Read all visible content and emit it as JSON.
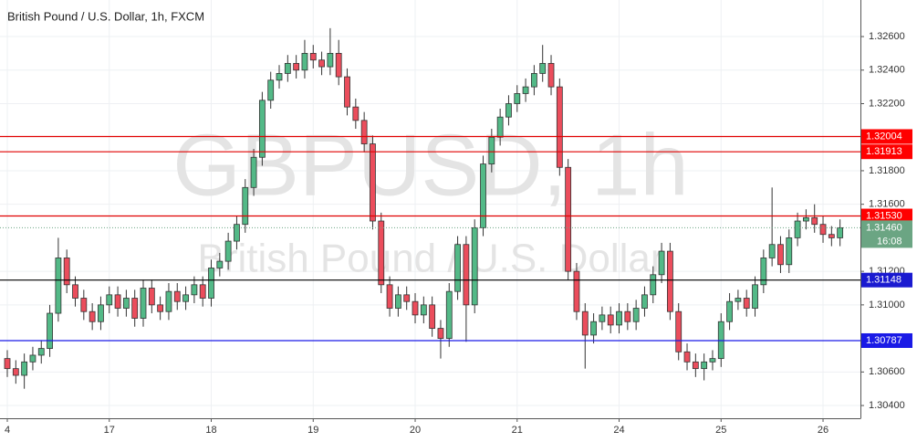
{
  "chart_data": {
    "type": "candlestick",
    "title": "British Pound / U.S. Dollar, 1h, FXCM",
    "watermark_symbol": "GBPUSD, 1h",
    "watermark_description": "British Pound / U.S. Dollar",
    "up_color": "#53b987",
    "down_color": "#eb4d5c",
    "x": [
      0,
      2,
      4,
      6,
      8,
      10,
      12,
      14,
      16,
      18,
      20,
      22,
      24,
      26,
      28,
      30,
      32,
      34,
      36,
      38,
      40,
      42,
      44,
      46,
      48,
      50,
      52,
      54,
      56,
      58,
      60,
      62,
      64,
      66,
      68,
      70,
      72,
      74,
      76,
      78,
      80,
      82,
      84,
      86,
      88,
      90,
      92,
      94,
      96,
      98,
      100,
      102,
      104,
      106,
      108,
      110,
      112,
      114,
      116,
      118,
      120,
      122,
      124,
      126,
      128,
      130,
      132,
      134,
      136,
      138,
      140,
      142,
      144,
      146,
      148,
      150,
      152,
      154,
      156,
      158,
      160,
      162,
      164,
      166,
      168,
      170,
      172,
      174,
      176,
      178,
      180,
      182,
      184,
      186,
      188,
      190,
      192,
      194,
      196
    ],
    "open": [
      1.3068,
      1.3062,
      1.3058,
      1.3066,
      1.307,
      1.3074,
      1.3095,
      1.3128,
      1.3112,
      1.3104,
      1.3096,
      1.309,
      1.31,
      1.3106,
      1.3098,
      1.3104,
      1.3092,
      1.311,
      1.31,
      1.3096,
      1.3108,
      1.3102,
      1.3106,
      1.3112,
      1.3104,
      1.3122,
      1.3126,
      1.3138,
      1.3148,
      1.317,
      1.3188,
      1.3222,
      1.3234,
      1.3238,
      1.3244,
      1.324,
      1.325,
      1.3246,
      1.3242,
      1.325,
      1.3236,
      1.3218,
      1.321,
      1.3196,
      1.315,
      1.3112,
      1.3098,
      1.3106,
      1.3102,
      1.3094,
      1.31,
      1.3086,
      1.308,
      1.3108,
      1.3136,
      1.31,
      1.3146,
      1.3184,
      1.32,
      1.3212,
      1.322,
      1.3226,
      1.323,
      1.3238,
      1.3244,
      1.323,
      1.3182,
      1.312,
      1.3096,
      1.3082,
      1.309,
      1.3094,
      1.3088,
      1.3096,
      1.309,
      1.3098,
      1.3106,
      1.3118,
      1.3132,
      1.3096,
      1.3072,
      1.3066,
      1.3062,
      1.3066,
      1.3068,
      1.309,
      1.3102,
      1.3104,
      1.3098,
      1.3112,
      1.3128,
      1.3136,
      1.3124,
      1.314,
      1.315,
      1.3152,
      1.3148,
      1.3142,
      1.314
    ],
    "high": [
      1.3073,
      1.3067,
      1.3071,
      1.3075,
      1.3079,
      1.31,
      1.314,
      1.3133,
      1.3117,
      1.3109,
      1.3101,
      1.3105,
      1.3111,
      1.3111,
      1.3109,
      1.3109,
      1.3115,
      1.3115,
      1.3105,
      1.3113,
      1.3113,
      1.3111,
      1.3117,
      1.3117,
      1.3127,
      1.3131,
      1.3143,
      1.3153,
      1.3175,
      1.3193,
      1.3227,
      1.3239,
      1.3243,
      1.3249,
      1.3249,
      1.3258,
      1.3255,
      1.3251,
      1.3265,
      1.3258,
      1.3241,
      1.3223,
      1.3215,
      1.3201,
      1.3155,
      1.3117,
      1.3111,
      1.3111,
      1.3107,
      1.3105,
      1.3105,
      1.3091,
      1.3113,
      1.3141,
      1.3141,
      1.3151,
      1.3189,
      1.3205,
      1.3217,
      1.3225,
      1.3231,
      1.3235,
      1.3243,
      1.3255,
      1.3249,
      1.3235,
      1.3187,
      1.3125,
      1.3101,
      1.3095,
      1.3099,
      1.3099,
      1.3101,
      1.3101,
      1.3103,
      1.3111,
      1.3123,
      1.3137,
      1.3137,
      1.3101,
      1.3077,
      1.3071,
      1.3071,
      1.3073,
      1.3095,
      1.3107,
      1.3109,
      1.3109,
      1.3117,
      1.3133,
      1.317,
      1.3141,
      1.3145,
      1.3155,
      1.3157,
      1.316,
      1.3153,
      1.3147,
      1.3151
    ],
    "low": [
      1.3057,
      1.3053,
      1.305,
      1.3061,
      1.3065,
      1.3069,
      1.309,
      1.3107,
      1.3099,
      1.3091,
      1.3085,
      1.3085,
      1.3095,
      1.3093,
      1.3093,
      1.3087,
      1.3087,
      1.3095,
      1.3091,
      1.3091,
      1.3097,
      1.3097,
      1.3101,
      1.3099,
      1.3099,
      1.3117,
      1.3121,
      1.3133,
      1.3143,
      1.3165,
      1.3183,
      1.3217,
      1.3229,
      1.3233,
      1.3235,
      1.3235,
      1.3241,
      1.3237,
      1.3237,
      1.3231,
      1.3213,
      1.3205,
      1.3191,
      1.3145,
      1.3107,
      1.3093,
      1.3093,
      1.3097,
      1.3089,
      1.3089,
      1.3081,
      1.3068,
      1.3075,
      1.3103,
      1.3078,
      1.3095,
      1.3141,
      1.3179,
      1.3195,
      1.3207,
      1.3215,
      1.3221,
      1.3225,
      1.3233,
      1.3225,
      1.3177,
      1.3115,
      1.3091,
      1.3062,
      1.3077,
      1.3085,
      1.3083,
      1.3083,
      1.3085,
      1.3085,
      1.3093,
      1.3101,
      1.3113,
      1.3091,
      1.3067,
      1.3061,
      1.3057,
      1.3055,
      1.3061,
      1.3063,
      1.3085,
      1.3097,
      1.3093,
      1.3093,
      1.3107,
      1.3123,
      1.3119,
      1.3119,
      1.3135,
      1.3145,
      1.3143,
      1.3137,
      1.3135,
      1.3135
    ],
    "close": [
      1.3062,
      1.3058,
      1.3066,
      1.307,
      1.3074,
      1.3095,
      1.3128,
      1.3112,
      1.3104,
      1.3096,
      1.309,
      1.31,
      1.3106,
      1.3098,
      1.3104,
      1.3092,
      1.311,
      1.31,
      1.3096,
      1.3108,
      1.3102,
      1.3106,
      1.3112,
      1.3104,
      1.3122,
      1.3126,
      1.3138,
      1.3148,
      1.317,
      1.3188,
      1.3222,
      1.3234,
      1.3238,
      1.3244,
      1.324,
      1.325,
      1.3246,
      1.3242,
      1.325,
      1.3236,
      1.3218,
      1.321,
      1.3196,
      1.315,
      1.3112,
      1.3098,
      1.3106,
      1.3102,
      1.3094,
      1.31,
      1.3086,
      1.308,
      1.3108,
      1.3136,
      1.31,
      1.3146,
      1.3184,
      1.32,
      1.3212,
      1.322,
      1.3226,
      1.323,
      1.3238,
      1.3244,
      1.323,
      1.3182,
      1.312,
      1.3096,
      1.3082,
      1.309,
      1.3094,
      1.3088,
      1.3096,
      1.309,
      1.3098,
      1.3106,
      1.3118,
      1.3132,
      1.3096,
      1.3072,
      1.3066,
      1.3062,
      1.3066,
      1.3068,
      1.309,
      1.3102,
      1.3104,
      1.3098,
      1.3112,
      1.3128,
      1.3136,
      1.3124,
      1.314,
      1.315,
      1.3152,
      1.3148,
      1.3142,
      1.314,
      1.3146
    ],
    "xlim": [
      -1.72,
      200.8
    ],
    "ylim": [
      1.30324,
      1.32818
    ],
    "xticks": [
      {
        "value": 0,
        "label": "4"
      },
      {
        "value": 24,
        "label": "17"
      },
      {
        "value": 48,
        "label": "18"
      },
      {
        "value": 72,
        "label": "19"
      },
      {
        "value": 96,
        "label": "20"
      },
      {
        "value": 120,
        "label": "21"
      },
      {
        "value": 144,
        "label": "24"
      },
      {
        "value": 168,
        "label": "25"
      },
      {
        "value": 192,
        "label": "26"
      }
    ],
    "yticks": [
      {
        "value": 1.304,
        "label": "1.30400"
      },
      {
        "value": 1.306,
        "label": "1.30600"
      },
      {
        "value": 1.31,
        "label": "1.31000"
      },
      {
        "value": 1.312,
        "label": "1.31200"
      },
      {
        "value": 1.316,
        "label": "1.31600"
      },
      {
        "value": 1.318,
        "label": "1.31800"
      },
      {
        "value": 1.322,
        "label": "1.32200"
      },
      {
        "value": 1.324,
        "label": "1.32400"
      },
      {
        "value": 1.326,
        "label": "1.32600"
      }
    ],
    "grid": true,
    "levels": [
      {
        "value": 1.32004,
        "label": "1.32004",
        "color": "#e00000",
        "label_color": "#ff0000"
      },
      {
        "value": 1.31913,
        "label": "1.31913",
        "color": "#e00000",
        "label_color": "#ff0000"
      },
      {
        "value": 1.3153,
        "label": "1.31530",
        "color": "#e00000",
        "label_color": "#ff0000"
      },
      {
        "value": 1.31148,
        "label": "1.31148",
        "color": "#000000",
        "label_color": "#1a1ad0"
      },
      {
        "value": 1.30787,
        "label": "1.30787",
        "color": "#1a1ae6",
        "label_color": "#1a1ae6"
      }
    ],
    "current_price": {
      "value": 1.3146,
      "label": "1.31460",
      "countdown": "16:08",
      "color": "#6ba583"
    }
  }
}
